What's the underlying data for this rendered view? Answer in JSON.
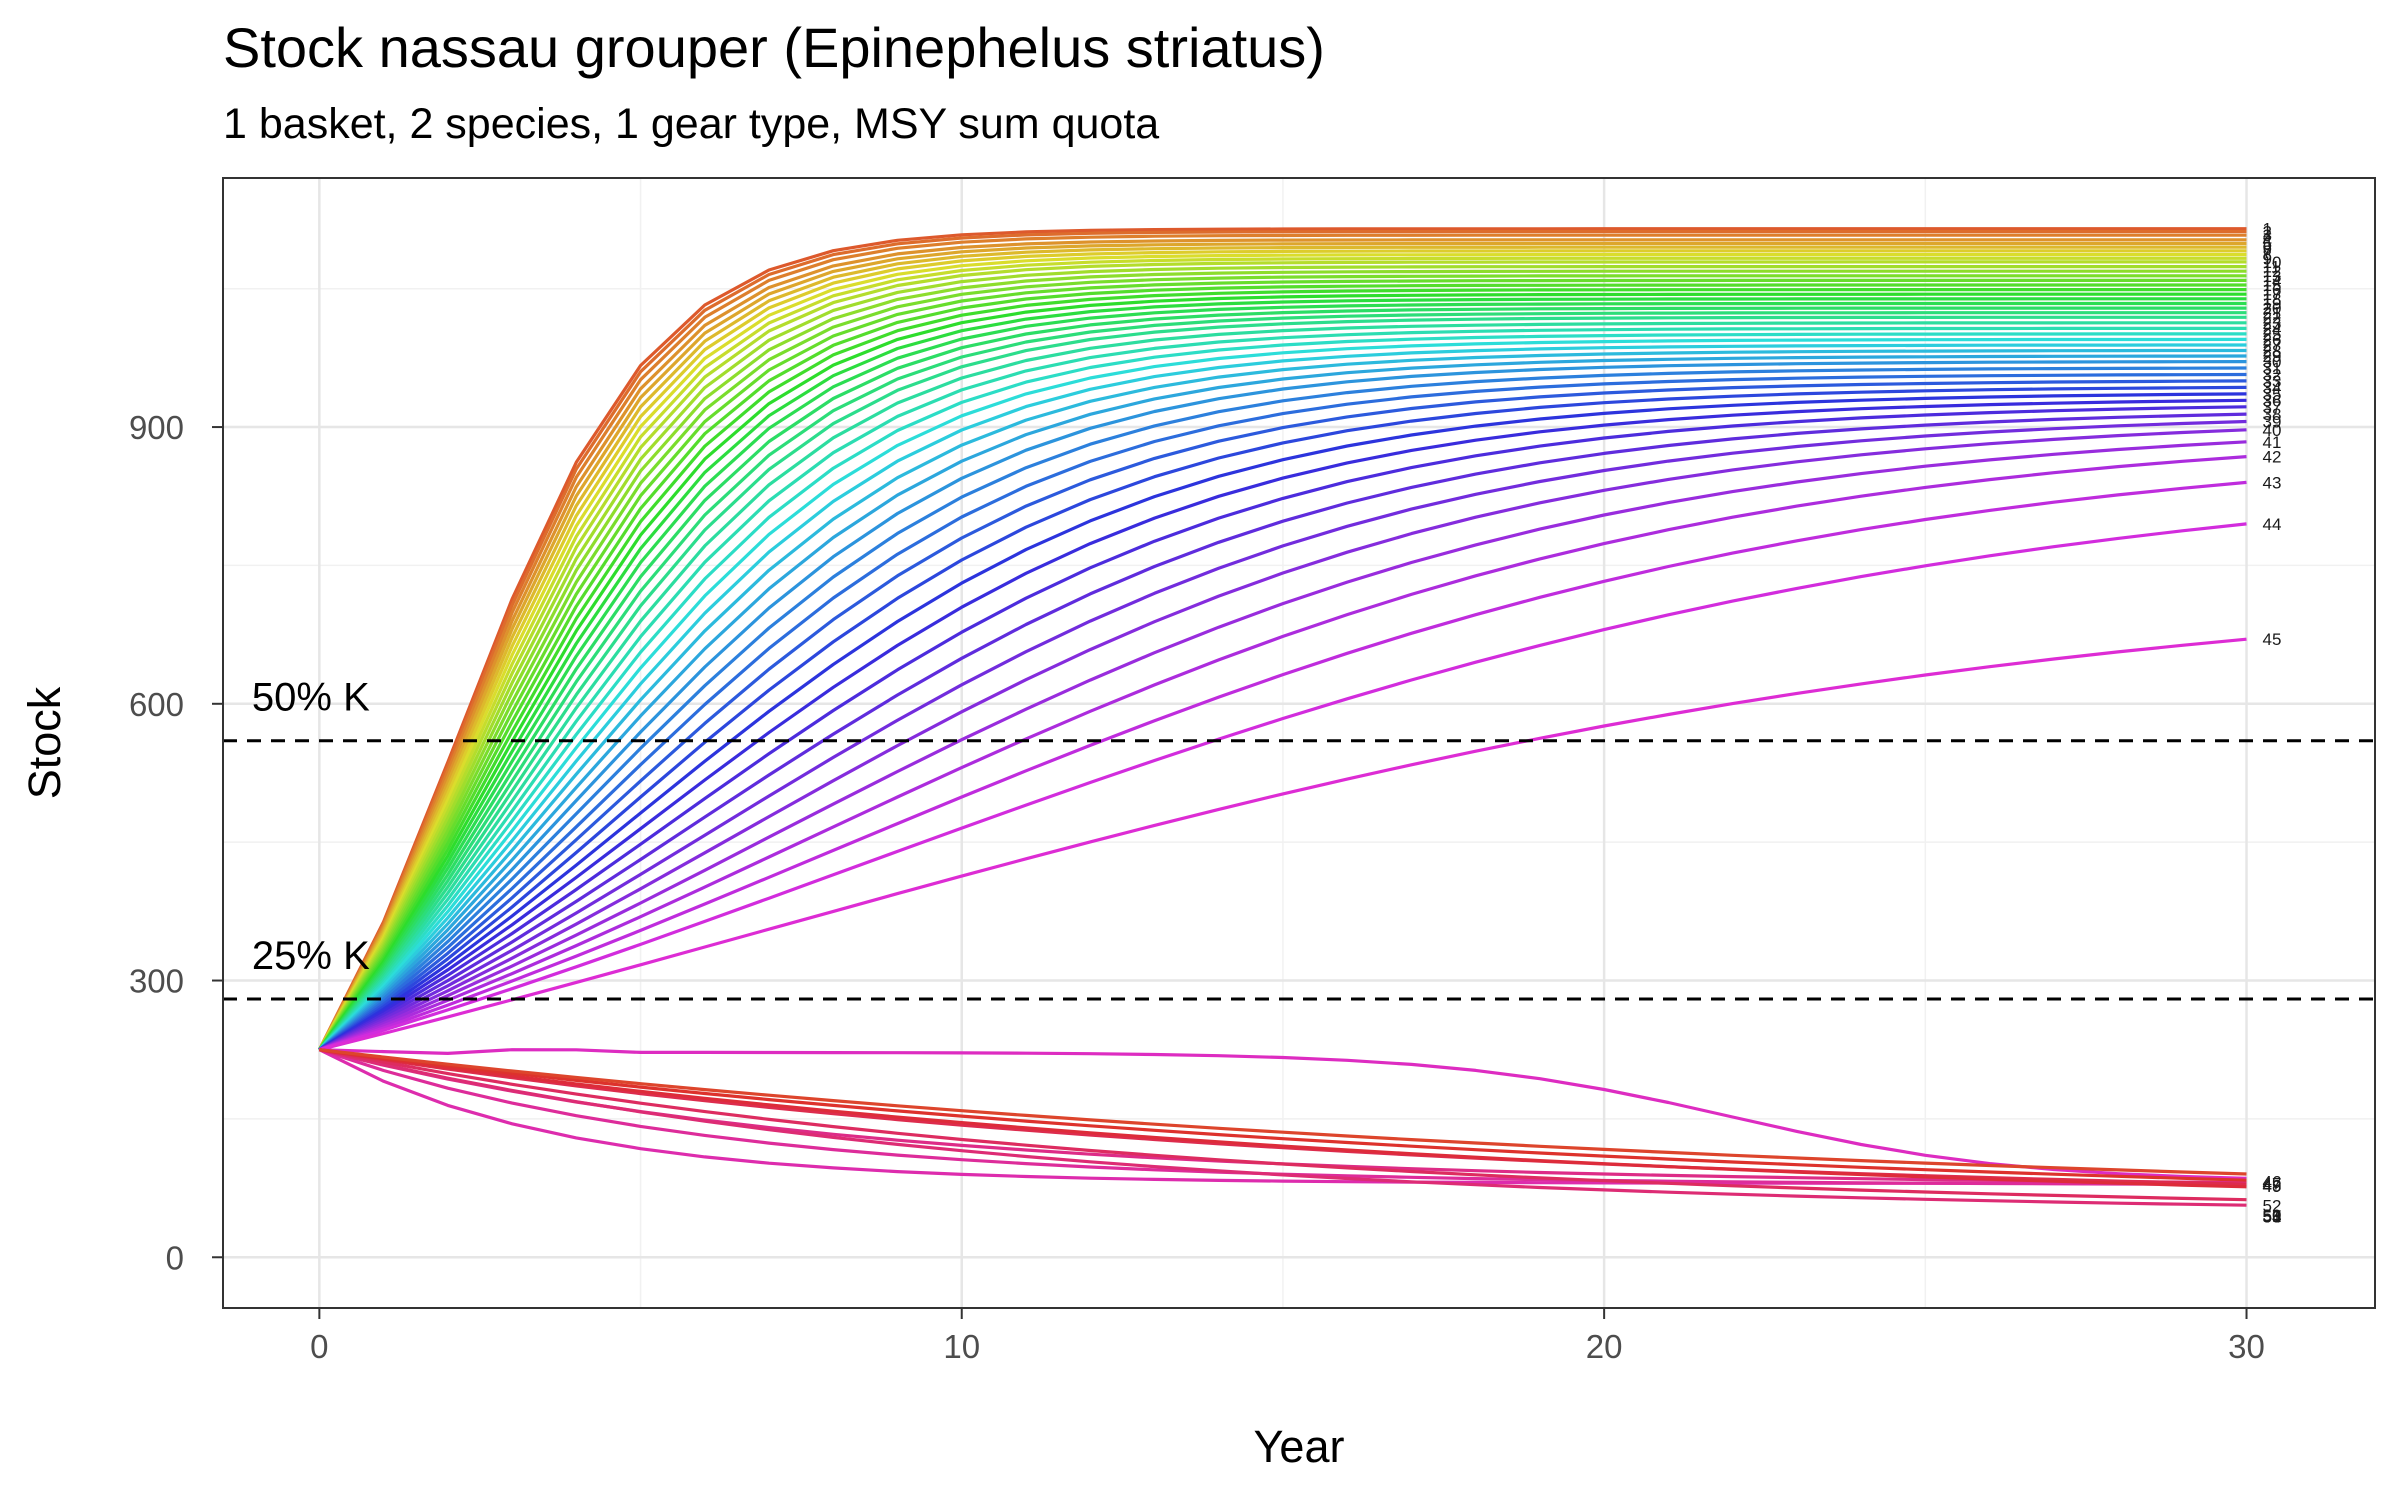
{
  "chart_data": {
    "type": "line",
    "title": "Stock nassau grouper (Epinephelus striatus)",
    "subtitle": "1 basket, 2 species, 1 gear type, MSY sum quota",
    "xlabel": "Year",
    "ylabel": "Stock",
    "xlim": [
      -1.5,
      32
    ],
    "ylim": [
      -55,
      1170
    ],
    "xticks": [
      0,
      10,
      20,
      30
    ],
    "yticks": [
      0,
      300,
      600,
      900
    ],
    "grid": true,
    "legend": "none",
    "reference_lines": [
      {
        "label": "50% K",
        "y": 560
      },
      {
        "label": "25% K",
        "y": 280
      }
    ],
    "series_model": {
      "count": 55,
      "x_range": [
        0,
        30
      ],
      "initial_stock": 225,
      "carrying_capacity_max": 1118,
      "recovering_runs": "1-45",
      "collapsing_runs": "46-55",
      "end_label_text": "run number"
    },
    "series": [
      {
        "name": "1",
        "end": 1115
      },
      {
        "name": "2",
        "end": 1112
      },
      {
        "name": "3",
        "end": 1108
      },
      {
        "name": "4",
        "end": 1103
      },
      {
        "name": "5",
        "end": 1099
      },
      {
        "name": "6",
        "end": 1095
      },
      {
        "name": "7",
        "end": 1091
      },
      {
        "name": "8",
        "end": 1087
      },
      {
        "name": "9",
        "end": 1083
      },
      {
        "name": "10",
        "end": 1079
      },
      {
        "name": "11",
        "end": 1074
      },
      {
        "name": "12",
        "end": 1069
      },
      {
        "name": "13",
        "end": 1064
      },
      {
        "name": "14",
        "end": 1059
      },
      {
        "name": "15",
        "end": 1054
      },
      {
        "name": "16",
        "end": 1049
      },
      {
        "name": "17",
        "end": 1044
      },
      {
        "name": "18",
        "end": 1039
      },
      {
        "name": "19",
        "end": 1034
      },
      {
        "name": "20",
        "end": 1029
      },
      {
        "name": "21",
        "end": 1024
      },
      {
        "name": "22",
        "end": 1019
      },
      {
        "name": "23",
        "end": 1013
      },
      {
        "name": "24",
        "end": 1007
      },
      {
        "name": "25",
        "end": 1001
      },
      {
        "name": "26",
        "end": 995
      },
      {
        "name": "27",
        "end": 989
      },
      {
        "name": "28",
        "end": 983
      },
      {
        "name": "29",
        "end": 977
      },
      {
        "name": "30",
        "end": 971
      },
      {
        "name": "31",
        "end": 964
      },
      {
        "name": "32",
        "end": 957
      },
      {
        "name": "33",
        "end": 950
      },
      {
        "name": "34",
        "end": 943
      },
      {
        "name": "35",
        "end": 936
      },
      {
        "name": "36",
        "end": 929
      },
      {
        "name": "37",
        "end": 922
      },
      {
        "name": "38",
        "end": 914
      },
      {
        "name": "39",
        "end": 906
      },
      {
        "name": "40",
        "end": 897
      },
      {
        "name": "41",
        "end": 884
      },
      {
        "name": "42",
        "end": 868
      },
      {
        "name": "43",
        "end": 840
      },
      {
        "name": "44",
        "end": 795
      },
      {
        "name": "45",
        "end": 670
      },
      {
        "name": "46",
        "end": 82
      },
      {
        "name": "47",
        "end": 80
      },
      {
        "name": "48",
        "end": 78
      },
      {
        "name": "49",
        "end": 77
      },
      {
        "name": "50",
        "end": 46
      },
      {
        "name": "51",
        "end": 45
      },
      {
        "name": "52",
        "end": 56
      },
      {
        "name": "53",
        "end": 44
      },
      {
        "name": "54",
        "end": 44
      },
      {
        "name": "55",
        "end": 44
      }
    ]
  }
}
